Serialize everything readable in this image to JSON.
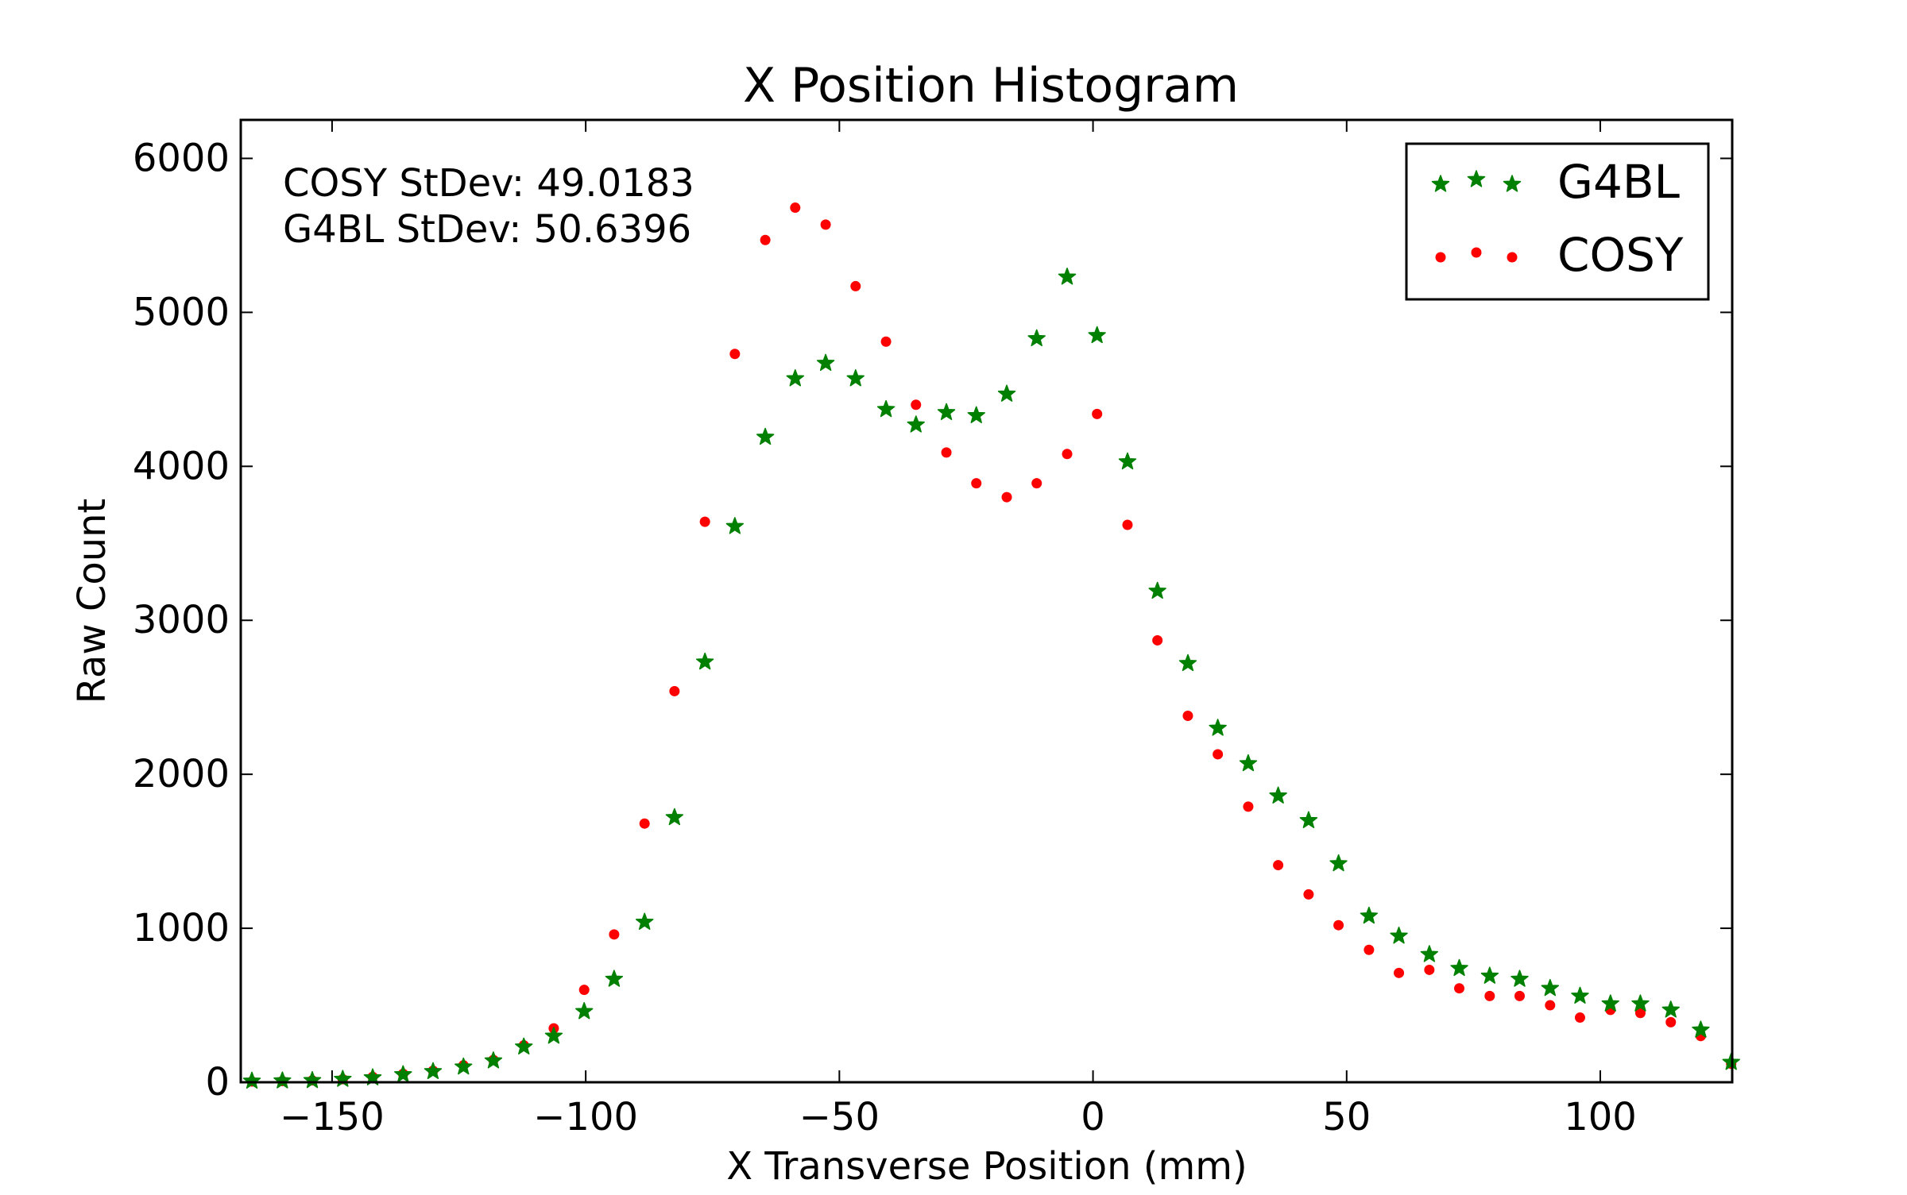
{
  "chart_data": {
    "type": "scatter",
    "title": "X Position Histogram",
    "xlabel": "X Transverse Position (mm)",
    "ylabel": "Raw Count",
    "xlim": [
      -168,
      126
    ],
    "ylim": [
      0,
      6250
    ],
    "x_ticks": [
      -150,
      -100,
      -50,
      0,
      50,
      100
    ],
    "y_ticks": [
      0,
      1000,
      2000,
      3000,
      4000,
      5000,
      6000
    ],
    "x_tick_labels": [
      "−150",
      "−100",
      "−50",
      "0",
      "50",
      "100"
    ],
    "y_tick_labels": [
      "0",
      "1000",
      "2000",
      "3000",
      "4000",
      "5000",
      "6000"
    ],
    "grid": false,
    "legend_position": "top-right",
    "annotations": [
      "COSY StDev: 49.0183",
      "G4BL StDev: 50.6396"
    ],
    "x": [
      -165.8,
      -159.8,
      -153.9,
      -147.9,
      -142.0,
      -136.0,
      -130.1,
      -124.1,
      -118.2,
      -112.2,
      -106.3,
      -100.3,
      -94.4,
      -88.4,
      -82.5,
      -76.5,
      -70.6,
      -64.6,
      -58.7,
      -52.7,
      -46.8,
      -40.8,
      -34.9,
      -28.9,
      -23.0,
      -17.0,
      -11.1,
      -5.1,
      0.8,
      6.8,
      12.7,
      18.7,
      24.6,
      30.6,
      36.5,
      42.5,
      48.4,
      54.4,
      60.3,
      66.3,
      72.2,
      78.2,
      84.1,
      90.1,
      96.0,
      102.0,
      107.9,
      113.9,
      119.8,
      125.8
    ],
    "series": [
      {
        "name": "G4BL",
        "color": "#008000",
        "marker": "star",
        "values": [
          8,
          10,
          12,
          20,
          30,
          50,
          70,
          100,
          140,
          230,
          300,
          460,
          670,
          1040,
          1720,
          2730,
          3610,
          4190,
          4570,
          4670,
          4570,
          4370,
          4270,
          4350,
          4330,
          4470,
          4830,
          5230,
          4850,
          4030,
          3190,
          2720,
          2300,
          2070,
          1860,
          1700,
          1420,
          1080,
          950,
          830,
          740,
          690,
          670,
          610,
          560,
          510,
          510,
          470,
          340,
          130
        ]
      },
      {
        "name": "COSY",
        "color": "#ff0000",
        "marker": "dot",
        "values": [
          5,
          8,
          12,
          20,
          35,
          55,
          75,
          110,
          145,
          240,
          350,
          600,
          960,
          1680,
          2540,
          3640,
          4730,
          5470,
          5680,
          5570,
          5170,
          4810,
          4400,
          4090,
          3890,
          3800,
          3890,
          4080,
          4340,
          3620,
          2870,
          2380,
          2130,
          1790,
          1410,
          1220,
          1020,
          860,
          710,
          730,
          610,
          560,
          560,
          500,
          420,
          470,
          450,
          390,
          300,
          120
        ]
      }
    ]
  }
}
